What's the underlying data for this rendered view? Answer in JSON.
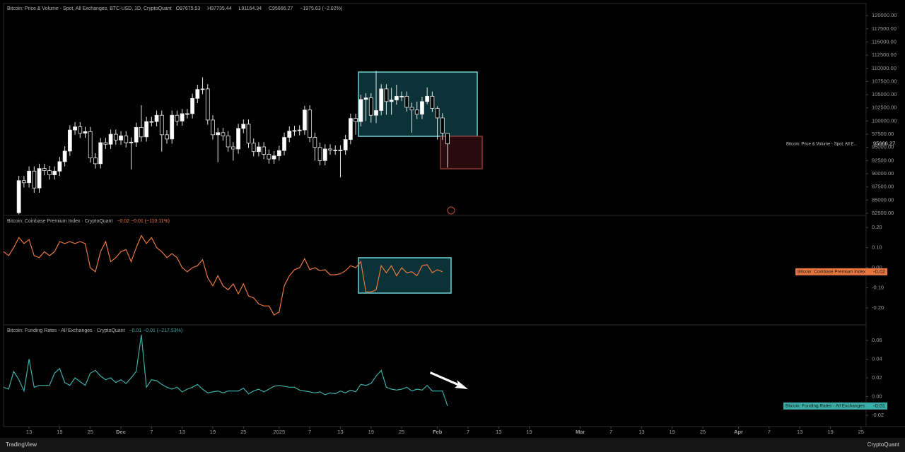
{
  "chart_data": [
    {
      "type": "candlestick",
      "title": "Bitcoin: Price & Volume - Spot, All Exchanges, BTC-USD, 1D, CryptoQuant",
      "ohlc_letters": [
        "O",
        "H",
        "L",
        "C"
      ],
      "change": "−1975.63 (−2.02%)",
      "series_name": "Bitcoin: Price & Volume - Spot, All E...",
      "up_color": "#ffffff",
      "down_color": "#000000",
      "wick_color": "#e8e8e8",
      "xlim": [
        -1,
        168
      ],
      "ylim": [
        82100,
        122300
      ],
      "yticks": [
        {
          "value": 82500,
          "label": "82500.00"
        },
        {
          "value": 85000,
          "label": "85000.00"
        },
        {
          "value": 87500,
          "label": "87500.00"
        },
        {
          "value": 90000,
          "label": "90000.00"
        },
        {
          "value": 92500,
          "label": "92500.00"
        },
        {
          "value": 95000,
          "label": "95000.00"
        },
        {
          "value": 97500,
          "label": "97500.00"
        },
        {
          "value": 100000,
          "label": "100000.00"
        },
        {
          "value": 102500,
          "label": "102500.00"
        },
        {
          "value": 105000,
          "label": "105000.00"
        },
        {
          "value": 107500,
          "label": "107500.00"
        },
        {
          "value": 110000,
          "label": "110000.00"
        },
        {
          "value": 112500,
          "label": "112500.00"
        },
        {
          "value": 115000,
          "label": "115000.00"
        },
        {
          "value": 117500,
          "label": "117500.00"
        },
        {
          "value": 120000,
          "label": "120000.00"
        }
      ],
      "x": [
        2,
        3,
        4,
        5,
        6,
        7,
        8,
        9,
        10,
        11,
        12,
        13,
        14,
        15,
        16,
        17,
        18,
        19,
        20,
        21,
        22,
        23,
        24,
        25,
        26,
        27,
        28,
        29,
        30,
        31,
        32,
        33,
        34,
        35,
        36,
        37,
        38,
        39,
        40,
        41,
        42,
        43,
        44,
        45,
        46,
        47,
        48,
        49,
        50,
        51,
        52,
        53,
        54,
        55,
        56,
        57,
        58,
        59,
        60,
        61,
        62,
        63,
        64,
        65,
        66,
        67,
        68,
        69,
        70,
        71,
        72,
        73,
        74,
        75,
        76,
        77,
        78,
        79,
        80,
        81,
        82,
        83,
        84,
        85,
        86
      ],
      "open": [
        82600,
        88700,
        88300,
        90500,
        87300,
        91000,
        90600,
        89800,
        90500,
        92300,
        94300,
        98300,
        98900,
        97700,
        98000,
        93000,
        91900,
        95900,
        95600,
        97500,
        96400,
        97200,
        95900,
        96000,
        98800,
        97000,
        99900,
        99900,
        101100,
        97400,
        96600,
        101100,
        100000,
        101400,
        101400,
        104300,
        106000,
        106100,
        100200,
        97400,
        97800,
        97200,
        95100,
        94700,
        98600,
        99400,
        95800,
        94200,
        95100,
        93700,
        92800,
        93400,
        94400,
        96900,
        98100,
        98200,
        98300,
        102100,
        96900,
        95000,
        92500,
        94700,
        94500,
        94500,
        94500,
        96500,
        100500,
        99900,
        104100,
        104400,
        101100,
        102000,
        106100,
        103700,
        104000,
        104700,
        104700,
        102600,
        102100,
        101300,
        103700,
        104700,
        102400,
        100600,
        97675.53
      ],
      "high": [
        89600,
        89600,
        91400,
        91400,
        91900,
        91900,
        91500,
        91400,
        93200,
        95200,
        99200,
        99800,
        99800,
        98900,
        98900,
        93900,
        96800,
        96800,
        98400,
        98400,
        98100,
        98100,
        96900,
        99700,
        103000,
        100800,
        100800,
        102000,
        102000,
        98300,
        102000,
        102000,
        102300,
        102300,
        105200,
        106900,
        108300,
        107000,
        101100,
        98700,
        98700,
        98100,
        96000,
        99500,
        100300,
        100300,
        96700,
        96000,
        96000,
        94600,
        94300,
        95300,
        97800,
        99000,
        99100,
        99200,
        102900,
        103000,
        97800,
        95900,
        95600,
        95600,
        95400,
        95400,
        97400,
        101400,
        101400,
        105000,
        105300,
        105300,
        109500,
        107000,
        107000,
        106300,
        106900,
        105600,
        105600,
        103500,
        103700,
        104600,
        106400,
        105600,
        102800,
        101500,
        97735.44
      ],
      "low": [
        82300,
        87400,
        87400,
        86400,
        86400,
        89700,
        88900,
        88900,
        89600,
        91400,
        93400,
        97400,
        96800,
        96800,
        92100,
        91000,
        91000,
        94700,
        94700,
        95500,
        95500,
        95000,
        90800,
        95100,
        96100,
        96100,
        99000,
        99000,
        94200,
        95700,
        95700,
        99100,
        99100,
        100500,
        100500,
        103400,
        105100,
        99300,
        96500,
        92200,
        96300,
        94200,
        92500,
        93800,
        97700,
        94900,
        93300,
        93300,
        92800,
        91900,
        91900,
        92500,
        93500,
        96000,
        97200,
        97300,
        97400,
        96000,
        92500,
        91600,
        91600,
        93600,
        93600,
        89300,
        93600,
        95600,
        97400,
        99000,
        100000,
        99700,
        99600,
        101100,
        101200,
        101200,
        103100,
        103800,
        101800,
        97800,
        100400,
        100400,
        103200,
        101700,
        96500,
        96400,
        91164.34
      ],
      "close": [
        88700,
        88300,
        90500,
        87300,
        91000,
        90600,
        89800,
        90500,
        92300,
        94300,
        98300,
        98900,
        97700,
        98000,
        93000,
        91900,
        95900,
        95600,
        97500,
        96400,
        97200,
        95900,
        96000,
        98800,
        97000,
        99900,
        99900,
        101100,
        97400,
        96600,
        101100,
        100000,
        101400,
        101400,
        104300,
        106000,
        106100,
        100200,
        97400,
        97800,
        97200,
        95100,
        94700,
        98600,
        99400,
        95800,
        94200,
        95100,
        93700,
        92800,
        93400,
        94400,
        96900,
        98100,
        98200,
        98300,
        102100,
        96900,
        95000,
        92500,
        94700,
        94500,
        94500,
        94500,
        96500,
        100500,
        99900,
        104100,
        104400,
        101100,
        102000,
        106100,
        103700,
        104000,
        104700,
        104700,
        102600,
        102100,
        101300,
        103700,
        104700,
        102400,
        100600,
        97700,
        95666.27
      ]
    },
    {
      "type": "line",
      "title": "Bitcoin: Coinbase Premium Index · CryptoQuant",
      "legend_values": "−0.02  −0.01 (−110.11%)",
      "xlim": [
        -1,
        168
      ],
      "ylim": [
        -0.284,
        0.26
      ],
      "yticks": [
        {
          "value": -0.2,
          "label": "-0.20"
        },
        {
          "value": -0.1,
          "label": "-0.10"
        },
        {
          "value": 0,
          "label": "0.00"
        },
        {
          "value": 0.1,
          "label": "0.10"
        },
        {
          "value": 0.2,
          "label": "0.20"
        }
      ],
      "x": [
        -1,
        0,
        1,
        2,
        3,
        4,
        5,
        6,
        7,
        8,
        9,
        10,
        11,
        12,
        13,
        14,
        15,
        16,
        17,
        18,
        19,
        20,
        21,
        22,
        23,
        24,
        25,
        26,
        27,
        28,
        29,
        30,
        31,
        32,
        33,
        34,
        35,
        36,
        37,
        38,
        39,
        40,
        41,
        42,
        43,
        44,
        45,
        46,
        47,
        48,
        49,
        50,
        51,
        52,
        53,
        54,
        55,
        56,
        57,
        58,
        59,
        60,
        61,
        62,
        63,
        64,
        65,
        66,
        67,
        68,
        69,
        70,
        71,
        72,
        73,
        74,
        75,
        76,
        77,
        78,
        79,
        80,
        81,
        82,
        83,
        84,
        85
      ],
      "series": [
        {
          "name": "Bitcoin: Coinbase Premium Index",
          "color": "#e8773f",
          "values": [
            0.08,
            0.06,
            0.1,
            0.15,
            0.12,
            0.14,
            0.06,
            0.05,
            0.08,
            0.06,
            0.08,
            0.13,
            0.12,
            0.13,
            0.12,
            0.13,
            0.12,
            0.0,
            -0.02,
            0.08,
            0.13,
            0.03,
            0.05,
            0.08,
            0.09,
            0.03,
            0.1,
            0.16,
            0.12,
            0.15,
            0.1,
            0.08,
            0.05,
            0.07,
            0.05,
            0.0,
            -0.02,
            0.0,
            0.01,
            0.04,
            -0.05,
            -0.09,
            -0.04,
            -0.09,
            -0.11,
            -0.08,
            -0.13,
            -0.08,
            -0.14,
            -0.15,
            -0.18,
            -0.19,
            -0.19,
            -0.235,
            -0.22,
            -0.09,
            -0.04,
            -0.01,
            0.0,
            0.045,
            -0.01,
            0.0,
            -0.015,
            -0.01,
            -0.035,
            -0.035,
            -0.03,
            -0.015,
            0.01,
            0.0,
            0.03,
            -0.12,
            -0.12,
            -0.11,
            0.01,
            -0.025,
            0.01,
            -0.04,
            0.0,
            -0.025,
            -0.02,
            -0.04,
            0.01,
            0.015,
            -0.025,
            -0.01,
            -0.02
          ]
        }
      ]
    },
    {
      "type": "line",
      "title": "Bitcoin: Funding Rates - All Exchanges · CryptoQuant",
      "legend_values": "−0.01  −0.01 (−217.53%)",
      "xlim": [
        -1,
        168
      ],
      "ylim": [
        -0.032,
        0.0766
      ],
      "yticks": [
        {
          "value": -0.02,
          "label": "-0.02"
        },
        {
          "value": 0,
          "label": "0.00"
        },
        {
          "value": 0.02,
          "label": "0.02"
        },
        {
          "value": 0.04,
          "label": "0.04"
        },
        {
          "value": 0.06,
          "label": "0.06"
        }
      ],
      "xticks": [
        {
          "value": 4,
          "label": "13"
        },
        {
          "value": 10,
          "label": "19"
        },
        {
          "value": 16,
          "label": "25"
        },
        {
          "value": 22,
          "label": "Dec"
        },
        {
          "value": 28,
          "label": "7"
        },
        {
          "value": 34,
          "label": "13"
        },
        {
          "value": 40,
          "label": "19"
        },
        {
          "value": 46,
          "label": "25"
        },
        {
          "value": 53,
          "label": "2025"
        },
        {
          "value": 59,
          "label": "7"
        },
        {
          "value": 65,
          "label": "13"
        },
        {
          "value": 71,
          "label": "19"
        },
        {
          "value": 77,
          "label": "25"
        },
        {
          "value": 84,
          "label": "Feb"
        },
        {
          "value": 90,
          "label": "7"
        },
        {
          "value": 96,
          "label": "13"
        },
        {
          "value": 102,
          "label": "19"
        },
        {
          "value": 112,
          "label": "Mar"
        },
        {
          "value": 118,
          "label": "7"
        },
        {
          "value": 124,
          "label": "13"
        },
        {
          "value": 130,
          "label": "19"
        },
        {
          "value": 136,
          "label": "25"
        },
        {
          "value": 143,
          "label": "Apr"
        },
        {
          "value": 149,
          "label": "7"
        },
        {
          "value": 155,
          "label": "13"
        },
        {
          "value": 161,
          "label": "19"
        },
        {
          "value": 167,
          "label": "25"
        }
      ],
      "x": [
        -1,
        0,
        1,
        2,
        3,
        4,
        5,
        6,
        7,
        8,
        9,
        10,
        11,
        12,
        13,
        14,
        15,
        16,
        17,
        18,
        19,
        20,
        21,
        22,
        23,
        24,
        25,
        26,
        27,
        28,
        29,
        30,
        31,
        32,
        33,
        34,
        35,
        36,
        37,
        38,
        39,
        40,
        41,
        42,
        43,
        44,
        45,
        46,
        47,
        48,
        49,
        50,
        51,
        52,
        53,
        54,
        55,
        56,
        57,
        58,
        59,
        60,
        61,
        62,
        63,
        64,
        65,
        66,
        67,
        68,
        69,
        70,
        71,
        72,
        73,
        74,
        75,
        76,
        77,
        78,
        79,
        80,
        81,
        82,
        83,
        84,
        85,
        86
      ],
      "series": [
        {
          "name": "Bitcoin: Funding Rates - All Exchanges",
          "color": "#3aaea6",
          "values": [
            0.01,
            0.008,
            0.027,
            0.018,
            0.006,
            0.04,
            0.01,
            0.012,
            0.012,
            0.012,
            0.025,
            0.03,
            0.015,
            0.012,
            0.02,
            0.016,
            0.012,
            0.025,
            0.028,
            0.022,
            0.018,
            0.02,
            0.015,
            0.018,
            0.014,
            0.02,
            0.027,
            0.066,
            0.01,
            0.018,
            0.017,
            0.013,
            0.01,
            0.008,
            0.01,
            0.005,
            0.008,
            0.01,
            0.013,
            0.008,
            0.004,
            0.005,
            0.006,
            0.004,
            0.006,
            0.006,
            0.006,
            0.009,
            0.003,
            0.006,
            0.008,
            0.005,
            0.008,
            0.011,
            0.012,
            0.011,
            0.01,
            0.01,
            0.007,
            0.006,
            0.005,
            0.004,
            0.005,
            0.002,
            0.004,
            0.003,
            0.006,
            0.004,
            0.007,
            0.005,
            0.013,
            0.012,
            0.014,
            0.022,
            0.028,
            0.01,
            0.008,
            0.007,
            0.008,
            0.01,
            0.006,
            0.008,
            0.007,
            0.012,
            0.006,
            0.006,
            0.006,
            -0.01
          ]
        }
      ]
    }
  ],
  "footer": {
    "left": "TradingView",
    "right": "CryptoQuant"
  }
}
